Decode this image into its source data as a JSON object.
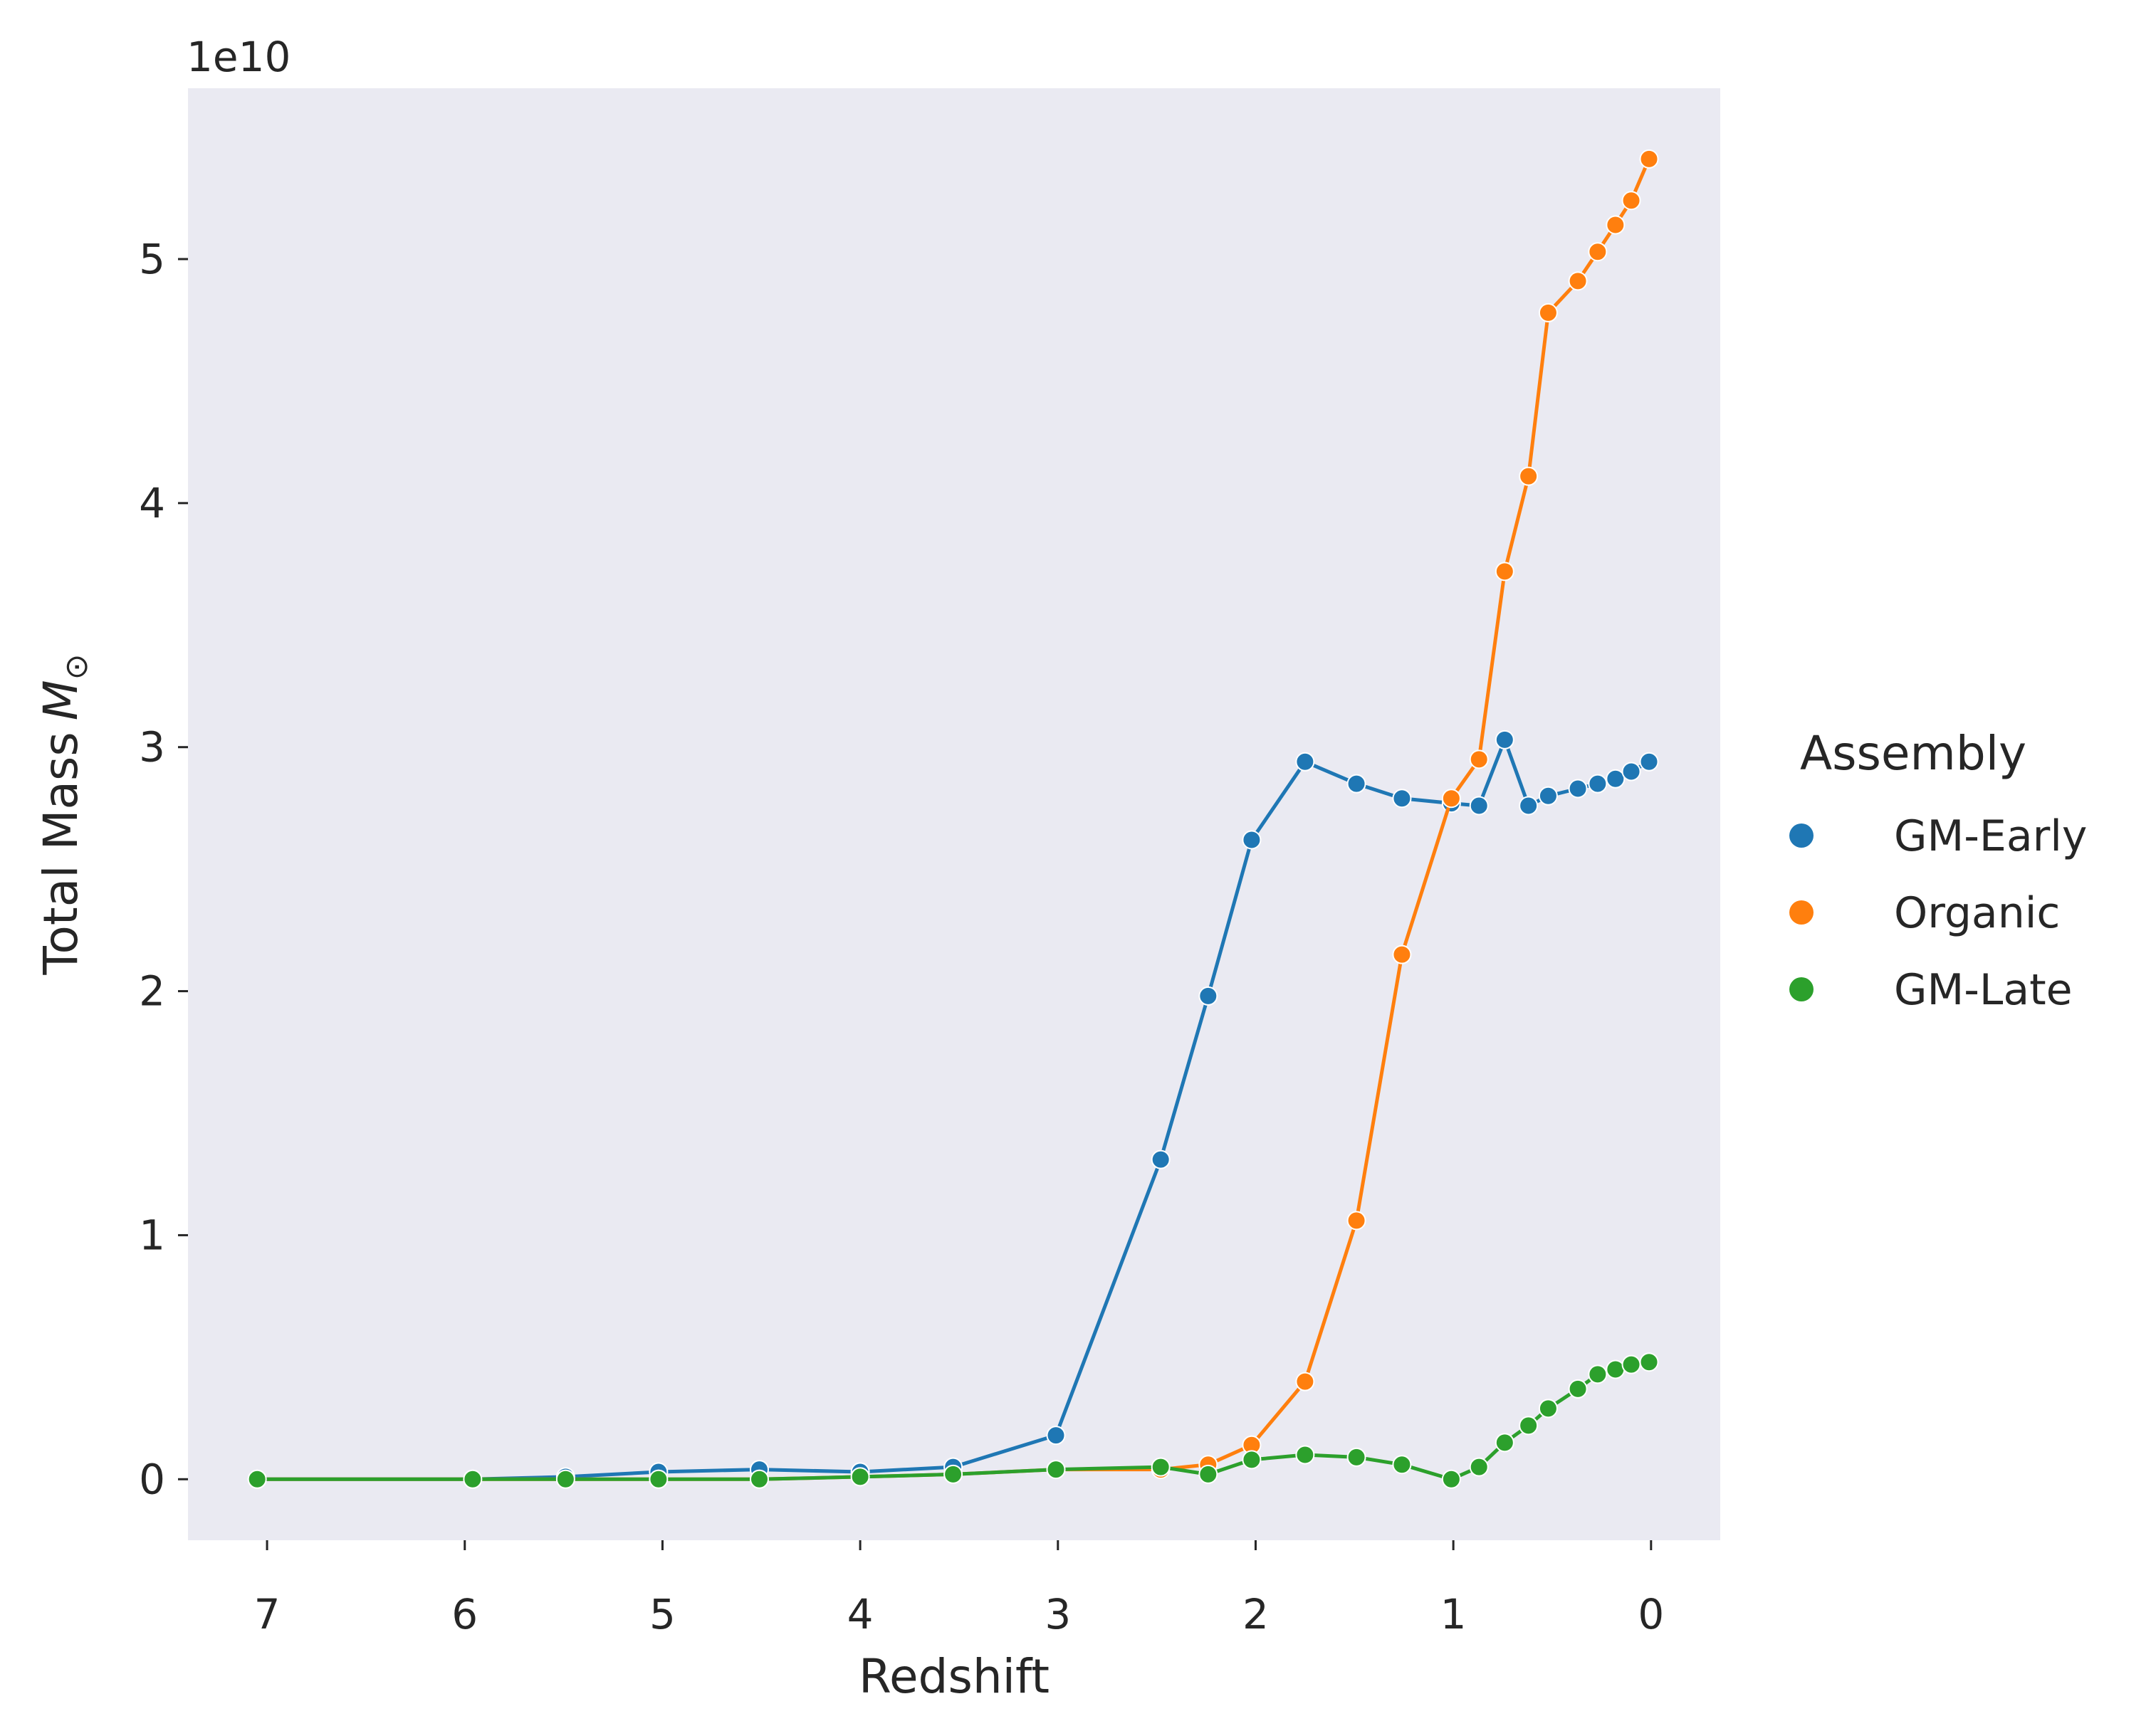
{
  "chart_data": {
    "type": "line",
    "xlabel": "Redshift",
    "ylabel": "Total Mass",
    "ylabel_symbol": "M",
    "ylabel_subscript": "⊙",
    "y_offset_text": "1e10",
    "xlim": [
      7.4,
      -0.35
    ],
    "ylim": [
      -0.25,
      5.7
    ],
    "x_ticks": [
      7,
      6,
      5,
      4,
      3,
      2,
      1,
      0
    ],
    "y_ticks": [
      0,
      1,
      2,
      3,
      4,
      5
    ],
    "grid": false,
    "plot_background": "#eaeaf2",
    "legend": {
      "title": "Assembly",
      "placement": "outside-right",
      "entries": [
        "GM-Early",
        "Organic",
        "GM-Late"
      ]
    },
    "series": [
      {
        "name": "GM-Early",
        "color": "#1f77b4",
        "x": [
          7.05,
          5.96,
          5.49,
          5.02,
          4.51,
          4.0,
          3.53,
          3.01,
          2.48,
          2.24,
          2.02,
          1.75,
          1.49,
          1.26,
          1.01,
          0.87,
          0.74,
          0.62,
          0.52,
          0.37,
          0.27,
          0.18,
          0.1,
          0.01
        ],
        "values": [
          0.0,
          0.0,
          0.01,
          0.03,
          0.04,
          0.03,
          0.05,
          0.18,
          1.31,
          1.98,
          2.62,
          2.94,
          2.85,
          2.79,
          2.77,
          2.76,
          3.03,
          2.76,
          2.8,
          2.83,
          2.85,
          2.87,
          2.9,
          2.94
        ]
      },
      {
        "name": "Organic",
        "color": "#ff7f0e",
        "x": [
          7.05,
          5.96,
          5.49,
          5.02,
          4.51,
          4.0,
          3.53,
          3.01,
          2.48,
          2.24,
          2.02,
          1.75,
          1.49,
          1.26,
          1.01,
          0.87,
          0.74,
          0.62,
          0.52,
          0.37,
          0.27,
          0.18,
          0.1,
          0.01
        ],
        "values": [
          0.0,
          0.0,
          0.0,
          0.0,
          0.0,
          0.01,
          0.02,
          0.04,
          0.04,
          0.06,
          0.14,
          0.4,
          1.06,
          2.15,
          2.79,
          2.95,
          3.72,
          4.11,
          4.78,
          4.91,
          5.03,
          5.14,
          5.24,
          5.41
        ]
      },
      {
        "name": "GM-Late",
        "color": "#2ca02c",
        "x": [
          7.05,
          5.96,
          5.49,
          5.02,
          4.51,
          4.0,
          3.53,
          3.01,
          2.48,
          2.24,
          2.02,
          1.75,
          1.49,
          1.26,
          1.01,
          0.87,
          0.74,
          0.62,
          0.52,
          0.37,
          0.27,
          0.18,
          0.1,
          0.01
        ],
        "values": [
          0.0,
          0.0,
          0.0,
          0.0,
          0.0,
          0.01,
          0.02,
          0.04,
          0.05,
          0.02,
          0.08,
          0.1,
          0.09,
          0.06,
          0.0,
          0.05,
          0.15,
          0.22,
          0.29,
          0.37,
          0.43,
          0.45,
          0.47,
          0.48
        ]
      }
    ]
  }
}
